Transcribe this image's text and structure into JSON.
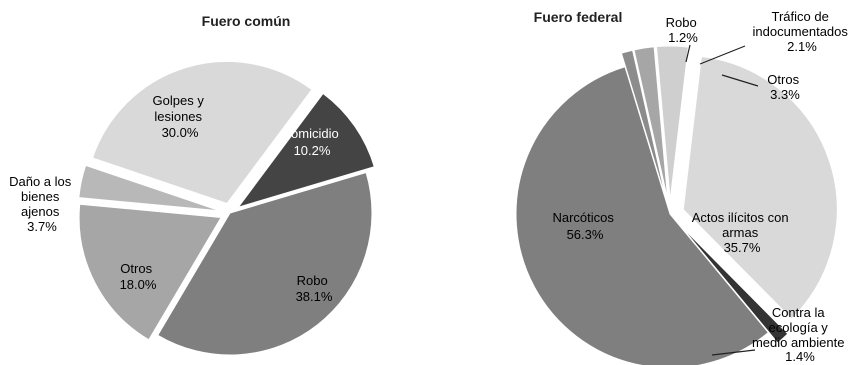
{
  "chart_data": [
    {
      "type": "pie",
      "title": "Fuero común",
      "slices": [
        {
          "name": "Golpes y lesiones",
          "value": 30.0,
          "label": "30.0%",
          "color": "#d9d9d9",
          "exploded": true
        },
        {
          "name": "Homicidio",
          "value": 10.2,
          "label": "10.2%",
          "color": "#444444",
          "exploded": true
        },
        {
          "name": "Robo",
          "value": 38.1,
          "label": "38.1%",
          "color": "#7f7f7f",
          "exploded": false
        },
        {
          "name": "Otros",
          "value": 18.0,
          "label": "18.0%",
          "color": "#a6a6a6",
          "exploded": true
        },
        {
          "name": "Daño a los bienes ajenos",
          "value": 3.7,
          "label": "3.7%",
          "color": "#b8b8b8",
          "exploded": true
        }
      ]
    },
    {
      "type": "pie",
      "title": "Fuero federal",
      "slices": [
        {
          "name": "Robo",
          "value": 1.2,
          "label": "1.2%",
          "color": "#8c8c8c",
          "exploded": true
        },
        {
          "name": "Tráfico de indocumentados",
          "value": 2.1,
          "label": "2.1%",
          "color": "#a6a6a6",
          "exploded": true
        },
        {
          "name": "Otros",
          "value": 3.3,
          "label": "3.3%",
          "color": "#cfcfcf",
          "exploded": true
        },
        {
          "name": "Actos ilícitos con armas",
          "value": 35.7,
          "label": "35.7%",
          "color": "#d9d9d9",
          "exploded": true
        },
        {
          "name": "Contra la ecología y medio ambiente",
          "value": 1.4,
          "label": "1.4%",
          "color": "#333333",
          "exploded": true
        },
        {
          "name": "Narcóticos",
          "value": 56.3,
          "label": "56.3%",
          "color": "#7f7f7f",
          "exploded": false
        }
      ]
    }
  ]
}
